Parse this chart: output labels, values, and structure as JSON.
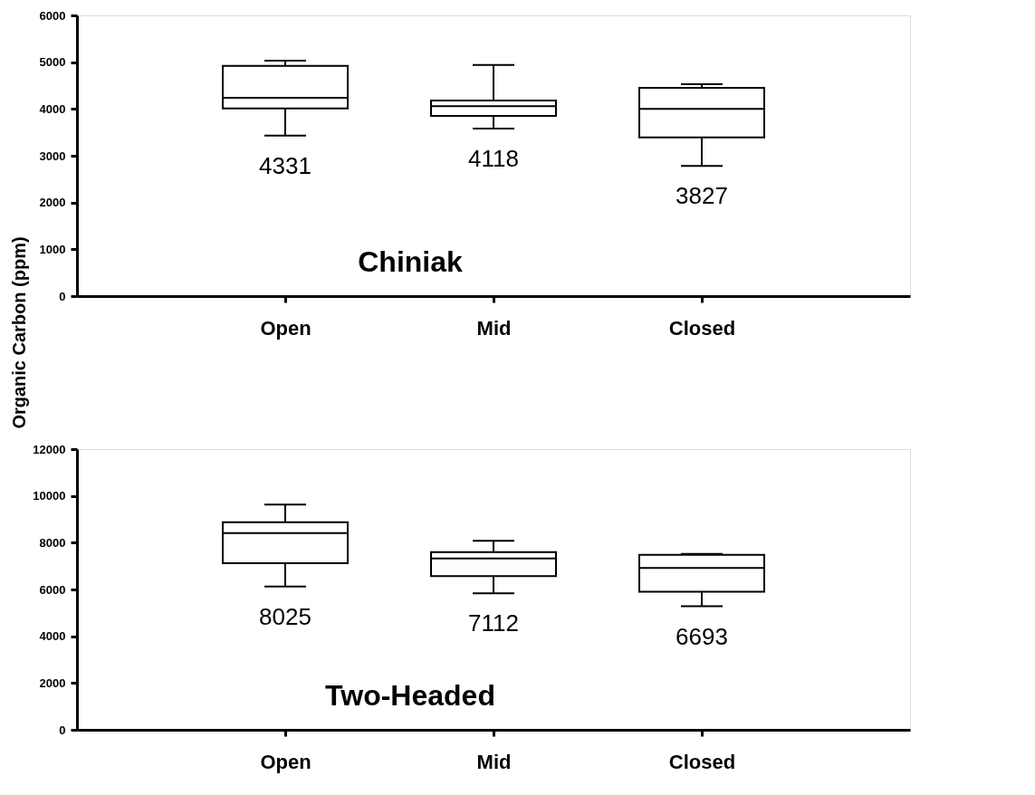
{
  "chart_data": [
    {
      "type": "box",
      "title": "Chiniak",
      "ylabel": "Organic Carbon (ppm)",
      "categories": [
        "Open",
        "Mid",
        "Closed"
      ],
      "boxes": [
        {
          "low": 3430,
          "q1": 4010,
          "median": 4240,
          "q3": 4920,
          "high": 5030
        },
        {
          "low": 3580,
          "q1": 3850,
          "median": 4060,
          "q3": 4180,
          "high": 4940
        },
        {
          "low": 2780,
          "q1": 3390,
          "median": 4000,
          "q3": 4450,
          "high": 4530
        }
      ],
      "annotations": [
        "4331",
        "4118",
        "3827"
      ],
      "ylim": [
        0,
        6000
      ],
      "yticks": [
        0,
        1000,
        2000,
        3000,
        4000,
        5000,
        6000
      ],
      "grid": false
    },
    {
      "type": "box",
      "title": "Two-Headed",
      "categories": [
        "Open",
        "Mid",
        "Closed"
      ],
      "boxes": [
        {
          "low": 6130,
          "q1": 7120,
          "median": 8410,
          "q3": 8870,
          "high": 9630
        },
        {
          "low": 5840,
          "q1": 6570,
          "median": 7330,
          "q3": 7600,
          "high": 8080
        },
        {
          "low": 5280,
          "q1": 5900,
          "median": 6920,
          "q3": 7480,
          "high": 7520
        }
      ],
      "annotations": [
        "8025",
        "7112",
        "6693"
      ],
      "ylim": [
        0,
        12000
      ],
      "yticks": [
        0,
        2000,
        4000,
        6000,
        8000,
        10000,
        12000
      ],
      "grid": false
    }
  ]
}
